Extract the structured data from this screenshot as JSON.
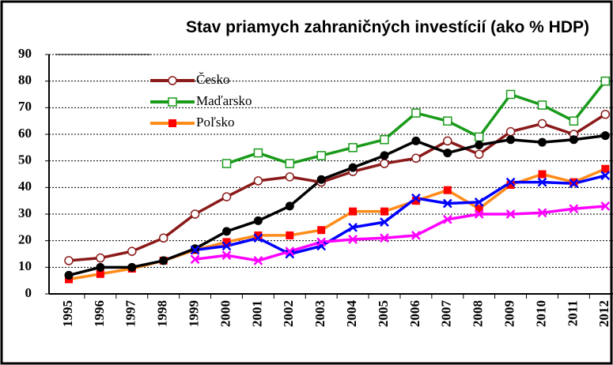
{
  "chart_data": {
    "type": "line",
    "title": "Stav priamych zahraničných investícií (ako % HDP)",
    "categories": [
      "1995",
      "1996",
      "1997",
      "1998",
      "1999",
      "2000",
      "2001",
      "2002",
      "2003",
      "2004",
      "2005",
      "2006",
      "2007",
      "2008",
      "2009",
      "2010",
      "2011",
      "2012"
    ],
    "series": [
      {
        "name": "Česko",
        "color": "#8b1a1a",
        "marker": "circle-open",
        "values": [
          12.5,
          13.5,
          16,
          21,
          30,
          36.5,
          42.5,
          44,
          42,
          46,
          49,
          51,
          57.5,
          52.5,
          61,
          64,
          60,
          67.5
        ]
      },
      {
        "name": "Maďarsko",
        "color": "#1a9a1a",
        "marker": "square-open",
        "values": [
          null,
          null,
          null,
          null,
          null,
          49,
          53,
          49,
          52,
          55,
          58,
          68,
          65,
          59,
          75,
          71,
          65,
          80
        ]
      },
      {
        "name": "Poľsko",
        "color": "#ff8c1a",
        "marker_color": "#ff0000",
        "marker": "square",
        "values": [
          5.5,
          7.5,
          9.5,
          12.5,
          16.5,
          19.5,
          22,
          22,
          24,
          31,
          31,
          35,
          39,
          32,
          41,
          45,
          42,
          47
        ]
      },
      {
        "color": "#000000",
        "marker": "circle",
        "values": [
          7,
          10,
          10,
          12.5,
          17,
          23.5,
          27.5,
          33,
          43,
          47.5,
          52,
          57.5,
          53,
          56,
          58,
          57,
          58,
          59.5
        ]
      },
      {
        "color": "#0000ff",
        "marker": "x",
        "values": [
          null,
          null,
          null,
          null,
          16.5,
          18,
          21,
          15,
          18,
          25,
          27,
          36,
          34,
          34.5,
          42,
          42,
          41.5,
          44.5
        ]
      },
      {
        "color": "#ff00ff",
        "marker": "x",
        "values": [
          null,
          null,
          null,
          null,
          13,
          14.5,
          12.5,
          16,
          19.5,
          20.5,
          21,
          22,
          28,
          30,
          30,
          30.5,
          32,
          33
        ]
      }
    ],
    "ylim": [
      0,
      90
    ],
    "yticks": [
      0,
      10,
      20,
      30,
      40,
      50,
      60,
      70,
      80,
      90
    ],
    "grid": true
  }
}
